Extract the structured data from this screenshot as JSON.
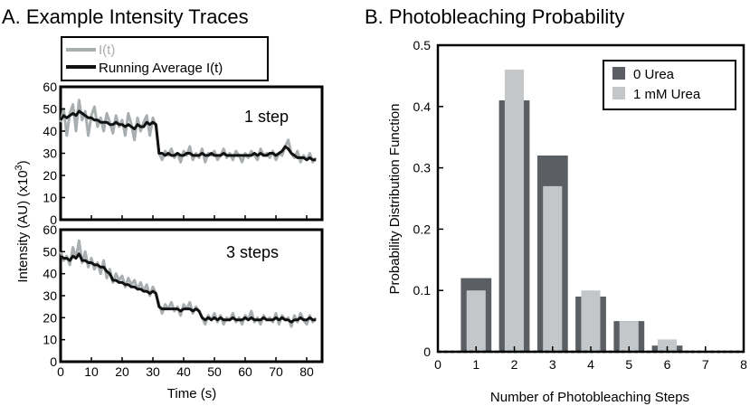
{
  "colors": {
    "raw_trace": "#a9aeb1",
    "avg_trace": "#111111",
    "bar_0_urea": "#5b5f64",
    "bar_1mM_urea": "#c3c7ca",
    "axis": "#000000"
  },
  "chart_data": [
    {
      "type": "line",
      "panel_title": "A. Example Intensity Traces",
      "xlabel": "Time (s)",
      "ylabel_main": "Intensity (AU) (x10",
      "ylabel_sup": "3",
      "ylabel_close": ")",
      "xlim": [
        0,
        85
      ],
      "x_ticks": [
        0,
        10,
        20,
        30,
        40,
        50,
        60,
        70,
        80
      ],
      "x_tick_labels": [
        "0",
        "10",
        "20",
        "30",
        "40",
        "50",
        "60",
        "70",
        "80"
      ],
      "legend": [
        "I(t)",
        "Running Average I(t)"
      ],
      "subplots": [
        {
          "annotation": "1 step",
          "ylim": [
            0,
            60
          ],
          "y_ticks": [
            0,
            10,
            20,
            30,
            40,
            50,
            60
          ],
          "y_tick_labels": [
            "0",
            "10",
            "20",
            "30",
            "40",
            "50",
            "60"
          ],
          "series": [
            {
              "name": "I(t)",
              "x": [
                0,
                1,
                2,
                3,
                4,
                5,
                6,
                7,
                8,
                9,
                10,
                11,
                12,
                13,
                14,
                15,
                16,
                17,
                18,
                19,
                20,
                21,
                22,
                23,
                24,
                25,
                26,
                27,
                28,
                29,
                30,
                31,
                32,
                33,
                34,
                35,
                36,
                37,
                38,
                39,
                40,
                41,
                42,
                43,
                44,
                45,
                46,
                47,
                48,
                49,
                50,
                51,
                52,
                53,
                54,
                55,
                56,
                57,
                58,
                59,
                60,
                61,
                62,
                63,
                64,
                65,
                66,
                67,
                68,
                69,
                70,
                71,
                72,
                73,
                74,
                75,
                76,
                77,
                78,
                79,
                80,
                81,
                82,
                83
              ],
              "y": [
                44,
                50,
                38,
                48,
                52,
                40,
                54,
                45,
                49,
                38,
                47,
                51,
                42,
                46,
                40,
                48,
                44,
                39,
                47,
                42,
                45,
                38,
                48,
                43,
                36,
                46,
                40,
                44,
                47,
                38,
                46,
                42,
                30,
                27,
                31,
                29,
                32,
                28,
                30,
                26,
                31,
                29,
                33,
                27,
                30,
                28,
                32,
                26,
                30,
                29,
                31,
                27,
                29,
                32,
                28,
                30,
                27,
                31,
                29,
                26,
                30,
                28,
                31,
                29,
                27,
                32,
                29,
                30,
                28,
                31,
                27,
                30,
                29,
                33,
                36,
                30,
                28,
                31,
                26,
                29,
                27,
                30,
                26,
                28
              ]
            },
            {
              "name": "Running Average I(t)",
              "x": [
                0,
                1,
                2,
                3,
                4,
                5,
                6,
                7,
                8,
                9,
                10,
                11,
                12,
                13,
                14,
                15,
                16,
                17,
                18,
                19,
                20,
                21,
                22,
                23,
                24,
                25,
                26,
                27,
                28,
                29,
                30,
                31,
                32,
                33,
                34,
                35,
                36,
                37,
                38,
                39,
                40,
                41,
                42,
                43,
                44,
                45,
                46,
                47,
                48,
                49,
                50,
                51,
                52,
                53,
                54,
                55,
                56,
                57,
                58,
                59,
                60,
                61,
                62,
                63,
                64,
                65,
                66,
                67,
                68,
                69,
                70,
                71,
                72,
                73,
                74,
                75,
                76,
                77,
                78,
                79,
                80,
                81,
                82,
                83
              ],
              "y": [
                45,
                47,
                46,
                47,
                48,
                47,
                49,
                48,
                47,
                46,
                46,
                45,
                45,
                44,
                44,
                44,
                43,
                43,
                44,
                43,
                43,
                42,
                43,
                42,
                41,
                43,
                42,
                42,
                44,
                43,
                44,
                43,
                30,
                30,
                29,
                30,
                29,
                29,
                30,
                29,
                29,
                30,
                30,
                29,
                29,
                29,
                30,
                29,
                29,
                30,
                29,
                29,
                29,
                30,
                29,
                29,
                29,
                29,
                29,
                29,
                29,
                29,
                29,
                30,
                29,
                30,
                29,
                29,
                30,
                30,
                29,
                30,
                31,
                33,
                32,
                30,
                29,
                28,
                28,
                28,
                27,
                28,
                27,
                27
              ]
            }
          ]
        },
        {
          "annotation": "3 steps",
          "ylim": [
            0,
            60
          ],
          "y_ticks": [
            0,
            10,
            20,
            30,
            40,
            50,
            60
          ],
          "y_tick_labels": [
            "0",
            "10",
            "20",
            "30",
            "40",
            "50",
            "60"
          ],
          "series": [
            {
              "name": "I(t)",
              "x": [
                0,
                1,
                2,
                3,
                4,
                5,
                6,
                7,
                8,
                9,
                10,
                11,
                12,
                13,
                14,
                15,
                16,
                17,
                18,
                19,
                20,
                21,
                22,
                23,
                24,
                25,
                26,
                27,
                28,
                29,
                30,
                31,
                32,
                33,
                34,
                35,
                36,
                37,
                38,
                39,
                40,
                41,
                42,
                43,
                44,
                45,
                46,
                47,
                48,
                49,
                50,
                51,
                52,
                53,
                54,
                55,
                56,
                57,
                58,
                59,
                60,
                61,
                62,
                63,
                64,
                65,
                66,
                67,
                68,
                69,
                70,
                71,
                72,
                73,
                74,
                75,
                76,
                77,
                78,
                79,
                80,
                81,
                82,
                83
              ],
              "y": [
                50,
                46,
                48,
                44,
                52,
                47,
                55,
                45,
                50,
                43,
                47,
                42,
                45,
                40,
                46,
                38,
                42,
                36,
                40,
                37,
                39,
                34,
                38,
                35,
                37,
                33,
                36,
                32,
                35,
                30,
                34,
                31,
                26,
                22,
                26,
                24,
                27,
                23,
                25,
                21,
                26,
                24,
                27,
                22,
                25,
                23,
                20,
                17,
                21,
                19,
                22,
                18,
                21,
                17,
                20,
                19,
                22,
                18,
                20,
                17,
                21,
                19,
                23,
                18,
                20,
                17,
                21,
                19,
                20,
                18,
                22,
                17,
                21,
                19,
                20,
                16,
                21,
                18,
                22,
                19,
                17,
                21,
                18,
                20
              ]
            },
            {
              "name": "Running Average I(t)",
              "x": [
                0,
                1,
                2,
                3,
                4,
                5,
                6,
                7,
                8,
                9,
                10,
                11,
                12,
                13,
                14,
                15,
                16,
                17,
                18,
                19,
                20,
                21,
                22,
                23,
                24,
                25,
                26,
                27,
                28,
                29,
                30,
                31,
                32,
                33,
                34,
                35,
                36,
                37,
                38,
                39,
                40,
                41,
                42,
                43,
                44,
                45,
                46,
                47,
                48,
                49,
                50,
                51,
                52,
                53,
                54,
                55,
                56,
                57,
                58,
                59,
                60,
                61,
                62,
                63,
                64,
                65,
                66,
                67,
                68,
                69,
                70,
                71,
                72,
                73,
                74,
                75,
                76,
                77,
                78,
                79,
                80,
                81,
                82,
                83
              ],
              "y": [
                48,
                47,
                47,
                46,
                48,
                47,
                49,
                46,
                46,
                45,
                45,
                44,
                44,
                43,
                43,
                41,
                40,
                37,
                37,
                36,
                36,
                35,
                35,
                34,
                34,
                33,
                33,
                32,
                32,
                31,
                32,
                31,
                25,
                24,
                24,
                24,
                24,
                24,
                24,
                23,
                24,
                24,
                24,
                23,
                24,
                23,
                20,
                19,
                20,
                19,
                20,
                19,
                20,
                19,
                19,
                19,
                20,
                19,
                19,
                19,
                20,
                19,
                20,
                19,
                19,
                19,
                20,
                19,
                19,
                19,
                20,
                19,
                20,
                19,
                19,
                18,
                19,
                19,
                20,
                19,
                19,
                20,
                19,
                19
              ]
            }
          ]
        }
      ]
    },
    {
      "type": "bar",
      "panel_title": "B. Photobleaching Probability",
      "xlabel": "Number of Photobleaching Steps",
      "ylabel": "Probability Distribution Function",
      "xlim": [
        0,
        8
      ],
      "ylim": [
        0,
        0.5
      ],
      "x_ticks": [
        0,
        1,
        2,
        3,
        4,
        5,
        6,
        7,
        8
      ],
      "x_tick_labels": [
        "0",
        "1",
        "2",
        "3",
        "4",
        "5",
        "6",
        "7",
        "8"
      ],
      "y_ticks": [
        0,
        0.1,
        0.2,
        0.3,
        0.4,
        0.5
      ],
      "y_tick_labels": [
        "0",
        "0.1",
        "0.2",
        "0.3",
        "0.4",
        "0.5"
      ],
      "categories": [
        1,
        2,
        3,
        4,
        5,
        6
      ],
      "series": [
        {
          "name": "0 Urea",
          "values": [
            0.12,
            0.41,
            0.32,
            0.09,
            0.05,
            0.01
          ]
        },
        {
          "name": "1 mM Urea",
          "values": [
            0.1,
            0.46,
            0.27,
            0.1,
            0.05,
            0.02
          ]
        }
      ],
      "legend_position": "top-right"
    }
  ]
}
